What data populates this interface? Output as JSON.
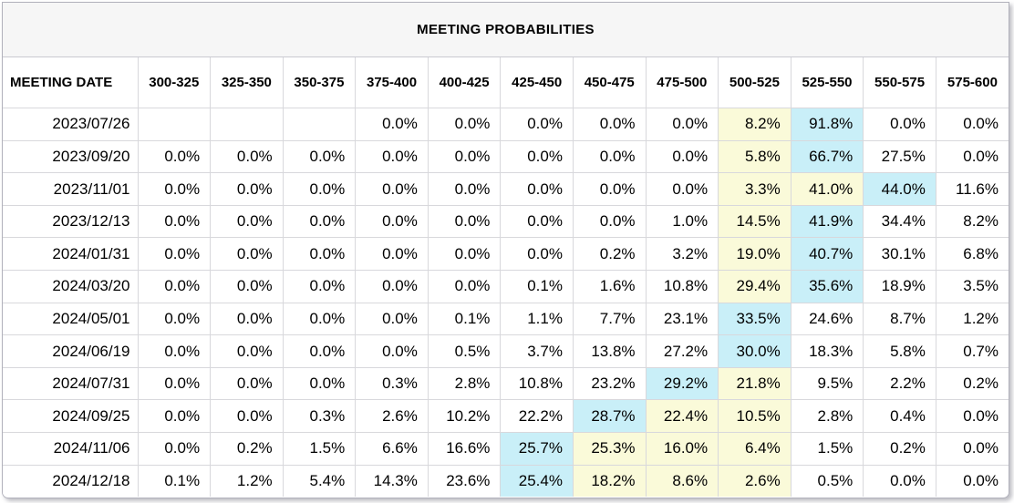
{
  "title": "MEETING PROBABILITIES",
  "colors": {
    "highlight_yellow": "#FAFAD9",
    "highlight_cyan": "#C9EFF8",
    "title_band_bg": "#F6F6F6",
    "grid_line": "#D8D8DC",
    "outer_border": "#B2B2BC",
    "text": "#000000"
  },
  "chart_data": {
    "type": "table",
    "title": "MEETING PROBABILITIES",
    "columns": [
      "MEETING DATE",
      "300-325",
      "325-350",
      "350-375",
      "375-400",
      "400-425",
      "425-450",
      "450-475",
      "475-500",
      "500-525",
      "525-550",
      "550-575",
      "575-600"
    ],
    "rows": [
      {
        "date": "2023/07/26",
        "values": [
          "",
          "",
          "",
          "0.0%",
          "0.0%",
          "0.0%",
          "0.0%",
          "0.0%",
          "8.2%",
          "91.8%",
          "0.0%",
          "0.0%"
        ],
        "yellow_cols": [
          8
        ],
        "cyan_cols": [
          9
        ]
      },
      {
        "date": "2023/09/20",
        "values": [
          "0.0%",
          "0.0%",
          "0.0%",
          "0.0%",
          "0.0%",
          "0.0%",
          "0.0%",
          "0.0%",
          "5.8%",
          "66.7%",
          "27.5%",
          "0.0%"
        ],
        "yellow_cols": [
          8
        ],
        "cyan_cols": [
          9
        ]
      },
      {
        "date": "2023/11/01",
        "values": [
          "0.0%",
          "0.0%",
          "0.0%",
          "0.0%",
          "0.0%",
          "0.0%",
          "0.0%",
          "0.0%",
          "3.3%",
          "41.0%",
          "44.0%",
          "11.6%"
        ],
        "yellow_cols": [
          8,
          9
        ],
        "cyan_cols": [
          10
        ]
      },
      {
        "date": "2023/12/13",
        "values": [
          "0.0%",
          "0.0%",
          "0.0%",
          "0.0%",
          "0.0%",
          "0.0%",
          "0.0%",
          "1.0%",
          "14.5%",
          "41.9%",
          "34.4%",
          "8.2%"
        ],
        "yellow_cols": [
          8
        ],
        "cyan_cols": [
          9
        ]
      },
      {
        "date": "2024/01/31",
        "values": [
          "0.0%",
          "0.0%",
          "0.0%",
          "0.0%",
          "0.0%",
          "0.0%",
          "0.2%",
          "3.2%",
          "19.0%",
          "40.7%",
          "30.1%",
          "6.8%"
        ],
        "yellow_cols": [
          8
        ],
        "cyan_cols": [
          9
        ]
      },
      {
        "date": "2024/03/20",
        "values": [
          "0.0%",
          "0.0%",
          "0.0%",
          "0.0%",
          "0.0%",
          "0.1%",
          "1.6%",
          "10.8%",
          "29.4%",
          "35.6%",
          "18.9%",
          "3.5%"
        ],
        "yellow_cols": [
          8
        ],
        "cyan_cols": [
          9
        ]
      },
      {
        "date": "2024/05/01",
        "values": [
          "0.0%",
          "0.0%",
          "0.0%",
          "0.0%",
          "0.1%",
          "1.1%",
          "7.7%",
          "23.1%",
          "33.5%",
          "24.6%",
          "8.7%",
          "1.2%"
        ],
        "yellow_cols": [],
        "cyan_cols": [
          8
        ]
      },
      {
        "date": "2024/06/19",
        "values": [
          "0.0%",
          "0.0%",
          "0.0%",
          "0.0%",
          "0.5%",
          "3.7%",
          "13.8%",
          "27.2%",
          "30.0%",
          "18.3%",
          "5.8%",
          "0.7%"
        ],
        "yellow_cols": [],
        "cyan_cols": [
          8
        ]
      },
      {
        "date": "2024/07/31",
        "values": [
          "0.0%",
          "0.0%",
          "0.0%",
          "0.3%",
          "2.8%",
          "10.8%",
          "23.2%",
          "29.2%",
          "21.8%",
          "9.5%",
          "2.2%",
          "0.2%"
        ],
        "yellow_cols": [
          8
        ],
        "cyan_cols": [
          7
        ]
      },
      {
        "date": "2024/09/25",
        "values": [
          "0.0%",
          "0.0%",
          "0.3%",
          "2.6%",
          "10.2%",
          "22.2%",
          "28.7%",
          "22.4%",
          "10.5%",
          "2.8%",
          "0.4%",
          "0.0%"
        ],
        "yellow_cols": [
          7,
          8
        ],
        "cyan_cols": [
          6
        ]
      },
      {
        "date": "2024/11/06",
        "values": [
          "0.0%",
          "0.2%",
          "1.5%",
          "6.6%",
          "16.6%",
          "25.7%",
          "25.3%",
          "16.0%",
          "6.4%",
          "1.5%",
          "0.2%",
          "0.0%"
        ],
        "yellow_cols": [
          6,
          7,
          8
        ],
        "cyan_cols": [
          5
        ]
      },
      {
        "date": "2024/12/18",
        "values": [
          "0.1%",
          "1.2%",
          "5.4%",
          "14.3%",
          "23.6%",
          "25.4%",
          "18.2%",
          "8.6%",
          "2.6%",
          "0.5%",
          "0.0%",
          "0.0%"
        ],
        "yellow_cols": [
          6,
          7,
          8
        ],
        "cyan_cols": [
          5
        ]
      }
    ]
  }
}
